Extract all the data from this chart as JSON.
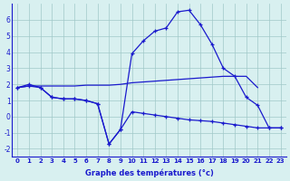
{
  "x": [
    0,
    1,
    2,
    3,
    4,
    5,
    6,
    7,
    8,
    9,
    10,
    11,
    12,
    13,
    14,
    15,
    16,
    17,
    18,
    19,
    20,
    21,
    22,
    23
  ],
  "line_top": [
    1.8,
    2.0,
    1.8,
    1.2,
    1.1,
    1.1,
    1.0,
    0.8,
    -1.7,
    -0.8,
    3.9,
    4.7,
    5.3,
    5.5,
    6.5,
    6.6,
    5.7,
    4.5,
    3.0,
    2.5,
    1.2,
    0.7,
    -0.7,
    -0.7
  ],
  "line_mid": [
    1.8,
    1.9,
    1.9,
    1.9,
    1.9,
    1.9,
    1.95,
    1.95,
    1.95,
    2.0,
    2.1,
    2.15,
    2.2,
    2.25,
    2.3,
    2.35,
    2.4,
    2.45,
    2.5,
    2.5,
    2.5,
    1.8,
    null,
    null
  ],
  "line_bot": [
    1.8,
    1.9,
    1.8,
    1.2,
    1.1,
    1.1,
    1.0,
    0.8,
    -1.7,
    -0.8,
    0.3,
    0.2,
    0.1,
    0.0,
    -0.1,
    -0.2,
    -0.25,
    -0.3,
    -0.4,
    -0.5,
    -0.6,
    -0.7,
    -0.7,
    -0.7
  ],
  "color": "#1a1acd",
  "bg_color": "#d8f0f0",
  "grid_color": "#a0c8c8",
  "xlabel": "Graphe des températures (°c)",
  "ylim": [
    -2.5,
    7.0
  ],
  "xlim": [
    -0.5,
    23.5
  ],
  "yticks": [
    -2,
    -1,
    0,
    1,
    2,
    3,
    4,
    5,
    6
  ],
  "xticks": [
    0,
    1,
    2,
    3,
    4,
    5,
    6,
    7,
    8,
    9,
    10,
    11,
    12,
    13,
    14,
    15,
    16,
    17,
    18,
    19,
    20,
    21,
    22,
    23
  ]
}
